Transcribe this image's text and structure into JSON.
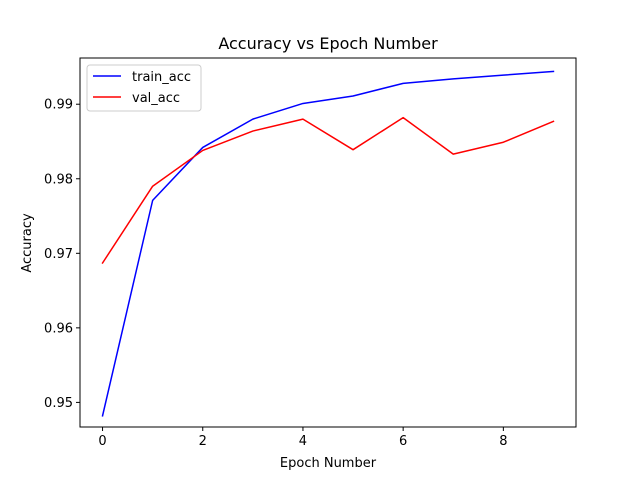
{
  "chart_data": {
    "type": "line",
    "title": "Accuracy vs Epoch Number",
    "xlabel": "Epoch Number",
    "ylabel": "Accuracy",
    "x": [
      0,
      1,
      2,
      3,
      4,
      5,
      6,
      7,
      8,
      9
    ],
    "xlim": [
      -0.45,
      9.45
    ],
    "ylim": [
      0.9467,
      0.9962
    ],
    "xticks": [
      0,
      2,
      4,
      6,
      8
    ],
    "yticks": [
      0.95,
      0.96,
      0.97,
      0.98,
      0.99
    ],
    "xtick_labels": [
      "0",
      "2",
      "4",
      "6",
      "8"
    ],
    "ytick_labels": [
      "0.95",
      "0.96",
      "0.97",
      "0.98",
      "0.99"
    ],
    "grid": false,
    "legend_position": "top-left",
    "series": [
      {
        "name": "train_acc",
        "color": "#0000ff",
        "values": [
          0.9482,
          0.9771,
          0.9842,
          0.988,
          0.9901,
          0.9911,
          0.9928,
          0.9934,
          0.9939,
          0.9944
        ]
      },
      {
        "name": "val_acc",
        "color": "#ff0000",
        "values": [
          0.9687,
          0.979,
          0.9838,
          0.9864,
          0.988,
          0.9839,
          0.9882,
          0.9833,
          0.9849,
          0.9877
        ]
      }
    ]
  }
}
